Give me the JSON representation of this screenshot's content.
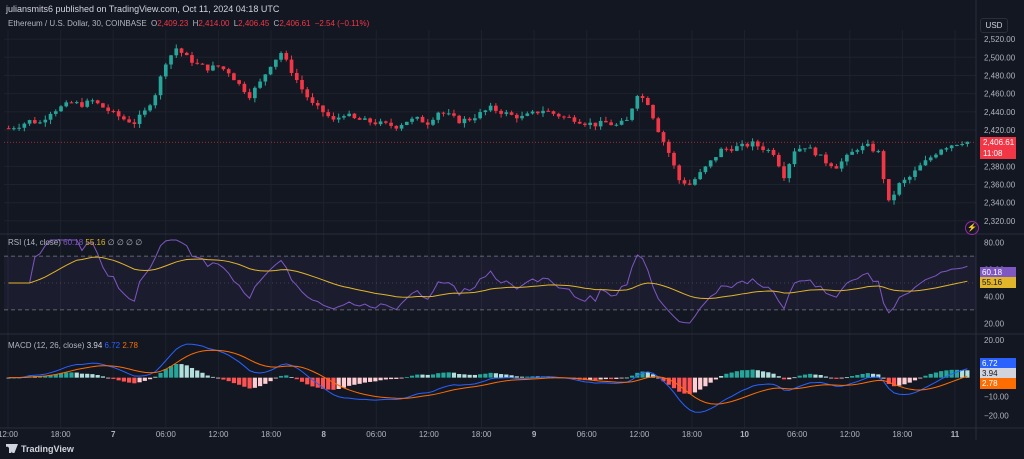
{
  "header": {
    "published": "juliansmits6 published on TradingView.com, Oct 11, 2024 04:18 UTC"
  },
  "legend": {
    "symbol": "Ethereum / U.S. Dollar, 30, COINBASE",
    "o_label": "O",
    "o": "2,409.23",
    "h_label": "H",
    "h": "2,414.00",
    "l_label": "L",
    "l": "2,406.45",
    "c_label": "C",
    "c": "2,406.61",
    "change": "−2.54 (−0.11%)"
  },
  "currency": "USD",
  "price_tag": {
    "price": "2,406.61",
    "countdown": "11:08"
  },
  "price_axis": [
    "2,520.00",
    "2,500.00",
    "2,480.00",
    "2,460.00",
    "2,440.00",
    "2,420.00",
    "2,380.00",
    "2,360.00",
    "2,340.00",
    "2,320.00"
  ],
  "rsi": {
    "label": "RSI (14, close)",
    "v1": "60.18",
    "v2": "55.16",
    "dots": "∅ ∅ ∅ ∅",
    "axis": [
      "80.00",
      "60.00",
      "40.00",
      "20.00"
    ],
    "tag1": "60.18",
    "tag2": "55.16"
  },
  "macd": {
    "label": "MACD (12, 26, close)",
    "v1": "3.94",
    "v2": "6.72",
    "v3": "2.78",
    "axis": [
      "20.00",
      "−10.00",
      "−20.00"
    ],
    "tag_macd": "6.72",
    "tag_hist": "3.94",
    "tag_signal": "2.78"
  },
  "time_axis": [
    "12:00",
    "18:00",
    "7",
    "06:00",
    "12:00",
    "18:00",
    "8",
    "06:00",
    "12:00",
    "18:00",
    "9",
    "06:00",
    "12:00",
    "18:00",
    "10",
    "06:00",
    "12:00",
    "18:00",
    "11"
  ],
  "footer": {
    "brand": "TradingView"
  },
  "colors": {
    "up": "#26a69a",
    "down": "#f23645",
    "rsi": "#7e57c2",
    "rsi_ma": "#e0b52a",
    "macd": "#2962ff",
    "signal": "#ff6d00",
    "background": "#131722"
  },
  "chart_data": {
    "type": "candlestick",
    "title": "Ethereum / U.S. Dollar, 30, COINBASE",
    "ylim": [
      2310,
      2530
    ],
    "close_path": [
      2422,
      2425,
      2430,
      2428,
      2440,
      2445,
      2450,
      2448,
      2452,
      2445,
      2438,
      2432,
      2428,
      2440,
      2460,
      2495,
      2510,
      2500,
      2492,
      2488,
      2490,
      2484,
      2470,
      2458,
      2472,
      2492,
      2505,
      2485,
      2465,
      2448,
      2440,
      2430,
      2438,
      2432,
      2430,
      2428,
      2426,
      2424,
      2430,
      2432,
      2428,
      2440,
      2436,
      2430,
      2432,
      2438,
      2444,
      2440,
      2436,
      2434,
      2438,
      2442,
      2438,
      2434,
      2432,
      2428,
      2426,
      2428,
      2425,
      2430,
      2460,
      2450,
      2420,
      2395,
      2365,
      2360,
      2372,
      2385,
      2398,
      2400,
      2402,
      2405,
      2400,
      2395,
      2370,
      2398,
      2402,
      2395,
      2385,
      2380,
      2390,
      2400,
      2402,
      2395,
      2340,
      2360,
      2368,
      2380,
      2390,
      2400,
      2404,
      2407
    ],
    "rsi": {
      "ylim": [
        15,
        85
      ],
      "bands": [
        70,
        30
      ],
      "values_last": [
        60.18,
        55.16
      ]
    },
    "macd": {
      "ylim": [
        -25,
        22
      ],
      "values_last": {
        "histogram": 3.94,
        "macd": 6.72,
        "signal": 2.78
      }
    }
  }
}
